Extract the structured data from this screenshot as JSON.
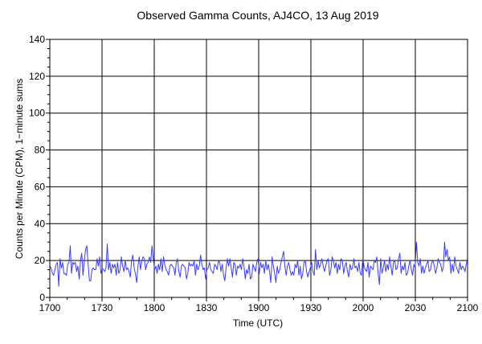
{
  "chart_data": {
    "type": "line",
    "title": "Observed Gamma Counts, AJ4CO, 13 Aug 2019",
    "xlabel": "Time (UTC)",
    "ylabel": "Counts per Minute (CPM), 1−minute sums",
    "x_tick_labels": [
      "1700",
      "1730",
      "1800",
      "1830",
      "1900",
      "1930",
      "2000",
      "2030",
      "2100"
    ],
    "x_tick_minutes": [
      0,
      30,
      60,
      90,
      120,
      150,
      180,
      210,
      240
    ],
    "y_ticks": [
      0,
      20,
      40,
      60,
      80,
      100,
      120,
      140
    ],
    "ylim": [
      0,
      140
    ],
    "xlim_minutes": [
      0,
      240
    ],
    "grid": true,
    "line_color": "#3b3bff",
    "series": [
      {
        "values": [
          17,
          16,
          13,
          12,
          15,
          18,
          19,
          6,
          21,
          16,
          19,
          13,
          13,
          12,
          18,
          19,
          28,
          13,
          19,
          18,
          19,
          14,
          17,
          10,
          20,
          24,
          12,
          20,
          26,
          28,
          18,
          9,
          9,
          15,
          16,
          15,
          15,
          21,
          17,
          22,
          13,
          16,
          15,
          14,
          16,
          29,
          15,
          19,
          13,
          18,
          16,
          18,
          12,
          19,
          13,
          15,
          22,
          17,
          14,
          20,
          15,
          16,
          14,
          11,
          20,
          23,
          16,
          13,
          8,
          17,
          22,
          15,
          20,
          22,
          21,
          15,
          18,
          19,
          22,
          19,
          28,
          21,
          15,
          17,
          13,
          18,
          15,
          21,
          14,
          22,
          18,
          15,
          14,
          12,
          17,
          18,
          17,
          16,
          12,
          19,
          21,
          14,
          11,
          17,
          18,
          17,
          16,
          10,
          13,
          19,
          17,
          18,
          17,
          20,
          12,
          18,
          15,
          17,
          23,
          18,
          15,
          16,
          10,
          15,
          16,
          19,
          15,
          14,
          13,
          18,
          17,
          15,
          20,
          19,
          14,
          18,
          12,
          9,
          16,
          21,
          17,
          21,
          16,
          11,
          19,
          18,
          12,
          17,
          16,
          18,
          15,
          21,
          17,
          10,
          15,
          13,
          18,
          10,
          11,
          18,
          16,
          14,
          19,
          21,
          13,
          19,
          16,
          18,
          13,
          20,
          15,
          18,
          14,
          8,
          22,
          17,
          13,
          8,
          17,
          13,
          15,
          19,
          22,
          25,
          17,
          12,
          17,
          19,
          15,
          12,
          14,
          12,
          18,
          16,
          20,
          12,
          17,
          10,
          13,
          19,
          20,
          14,
          11,
          14,
          16,
          19,
          14,
          12,
          26,
          15,
          20,
          16,
          18,
          21,
          17,
          14,
          17,
          20,
          21,
          12,
          15,
          22,
          20,
          16,
          19,
          13,
          18,
          15,
          21,
          20,
          13,
          17,
          19,
          14,
          11,
          18,
          15,
          16,
          21,
          16,
          17,
          14,
          19,
          13,
          12,
          21,
          17,
          15,
          14,
          19,
          11,
          17,
          16,
          15,
          20,
          19,
          22,
          13,
          7,
          21,
          13,
          16,
          20,
          14,
          18,
          15,
          22,
          17,
          12,
          19,
          20,
          15,
          16,
          21,
          24,
          13,
          17,
          15,
          19,
          12,
          13,
          17,
          20,
          15,
          12,
          18,
          16,
          30,
          19,
          17,
          21,
          13,
          17,
          13,
          16,
          18,
          20,
          14,
          15,
          19,
          20,
          17,
          13,
          16,
          21,
          19,
          18,
          14,
          16,
          30,
          22,
          26,
          20,
          22,
          13,
          18,
          14,
          22,
          17,
          15,
          13,
          19,
          15,
          17,
          16,
          14,
          18,
          21
        ]
      }
    ]
  }
}
